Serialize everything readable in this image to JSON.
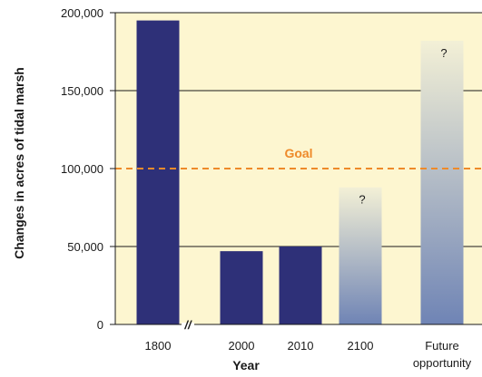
{
  "chart_data": {
    "type": "bar",
    "title": "",
    "ylabel": "Changes in acres of tidal marsh",
    "xlabel": "Year",
    "ylim": [
      0,
      200000
    ],
    "yticks": [
      0,
      50000,
      100000,
      150000,
      200000
    ],
    "ytick_labels": [
      "0",
      "50,000",
      "100,000",
      "150,000",
      "200,000"
    ],
    "categories": [
      {
        "lines": [
          "1800"
        ]
      },
      {
        "lines": [
          "2000"
        ]
      },
      {
        "lines": [
          "2010"
        ]
      },
      {
        "lines": [
          "2100"
        ]
      },
      {
        "lines": [
          "Future",
          "opportunity"
        ]
      }
    ],
    "values": [
      195000,
      47000,
      50000,
      88000,
      182000
    ],
    "uncertain": [
      false,
      false,
      false,
      true,
      true
    ],
    "uncertain_label": "?",
    "goal": {
      "value": 100000,
      "label": "Goal"
    },
    "axis_break_symbol": "//",
    "grid": true,
    "colors": {
      "bar": "#2e3078",
      "gradient_top": "#f3f0d6",
      "gradient_bottom": "#6f84b5",
      "background": "#fdf6d0",
      "goal": "#ee8a2a",
      "grid": "#1a1a1a"
    }
  }
}
